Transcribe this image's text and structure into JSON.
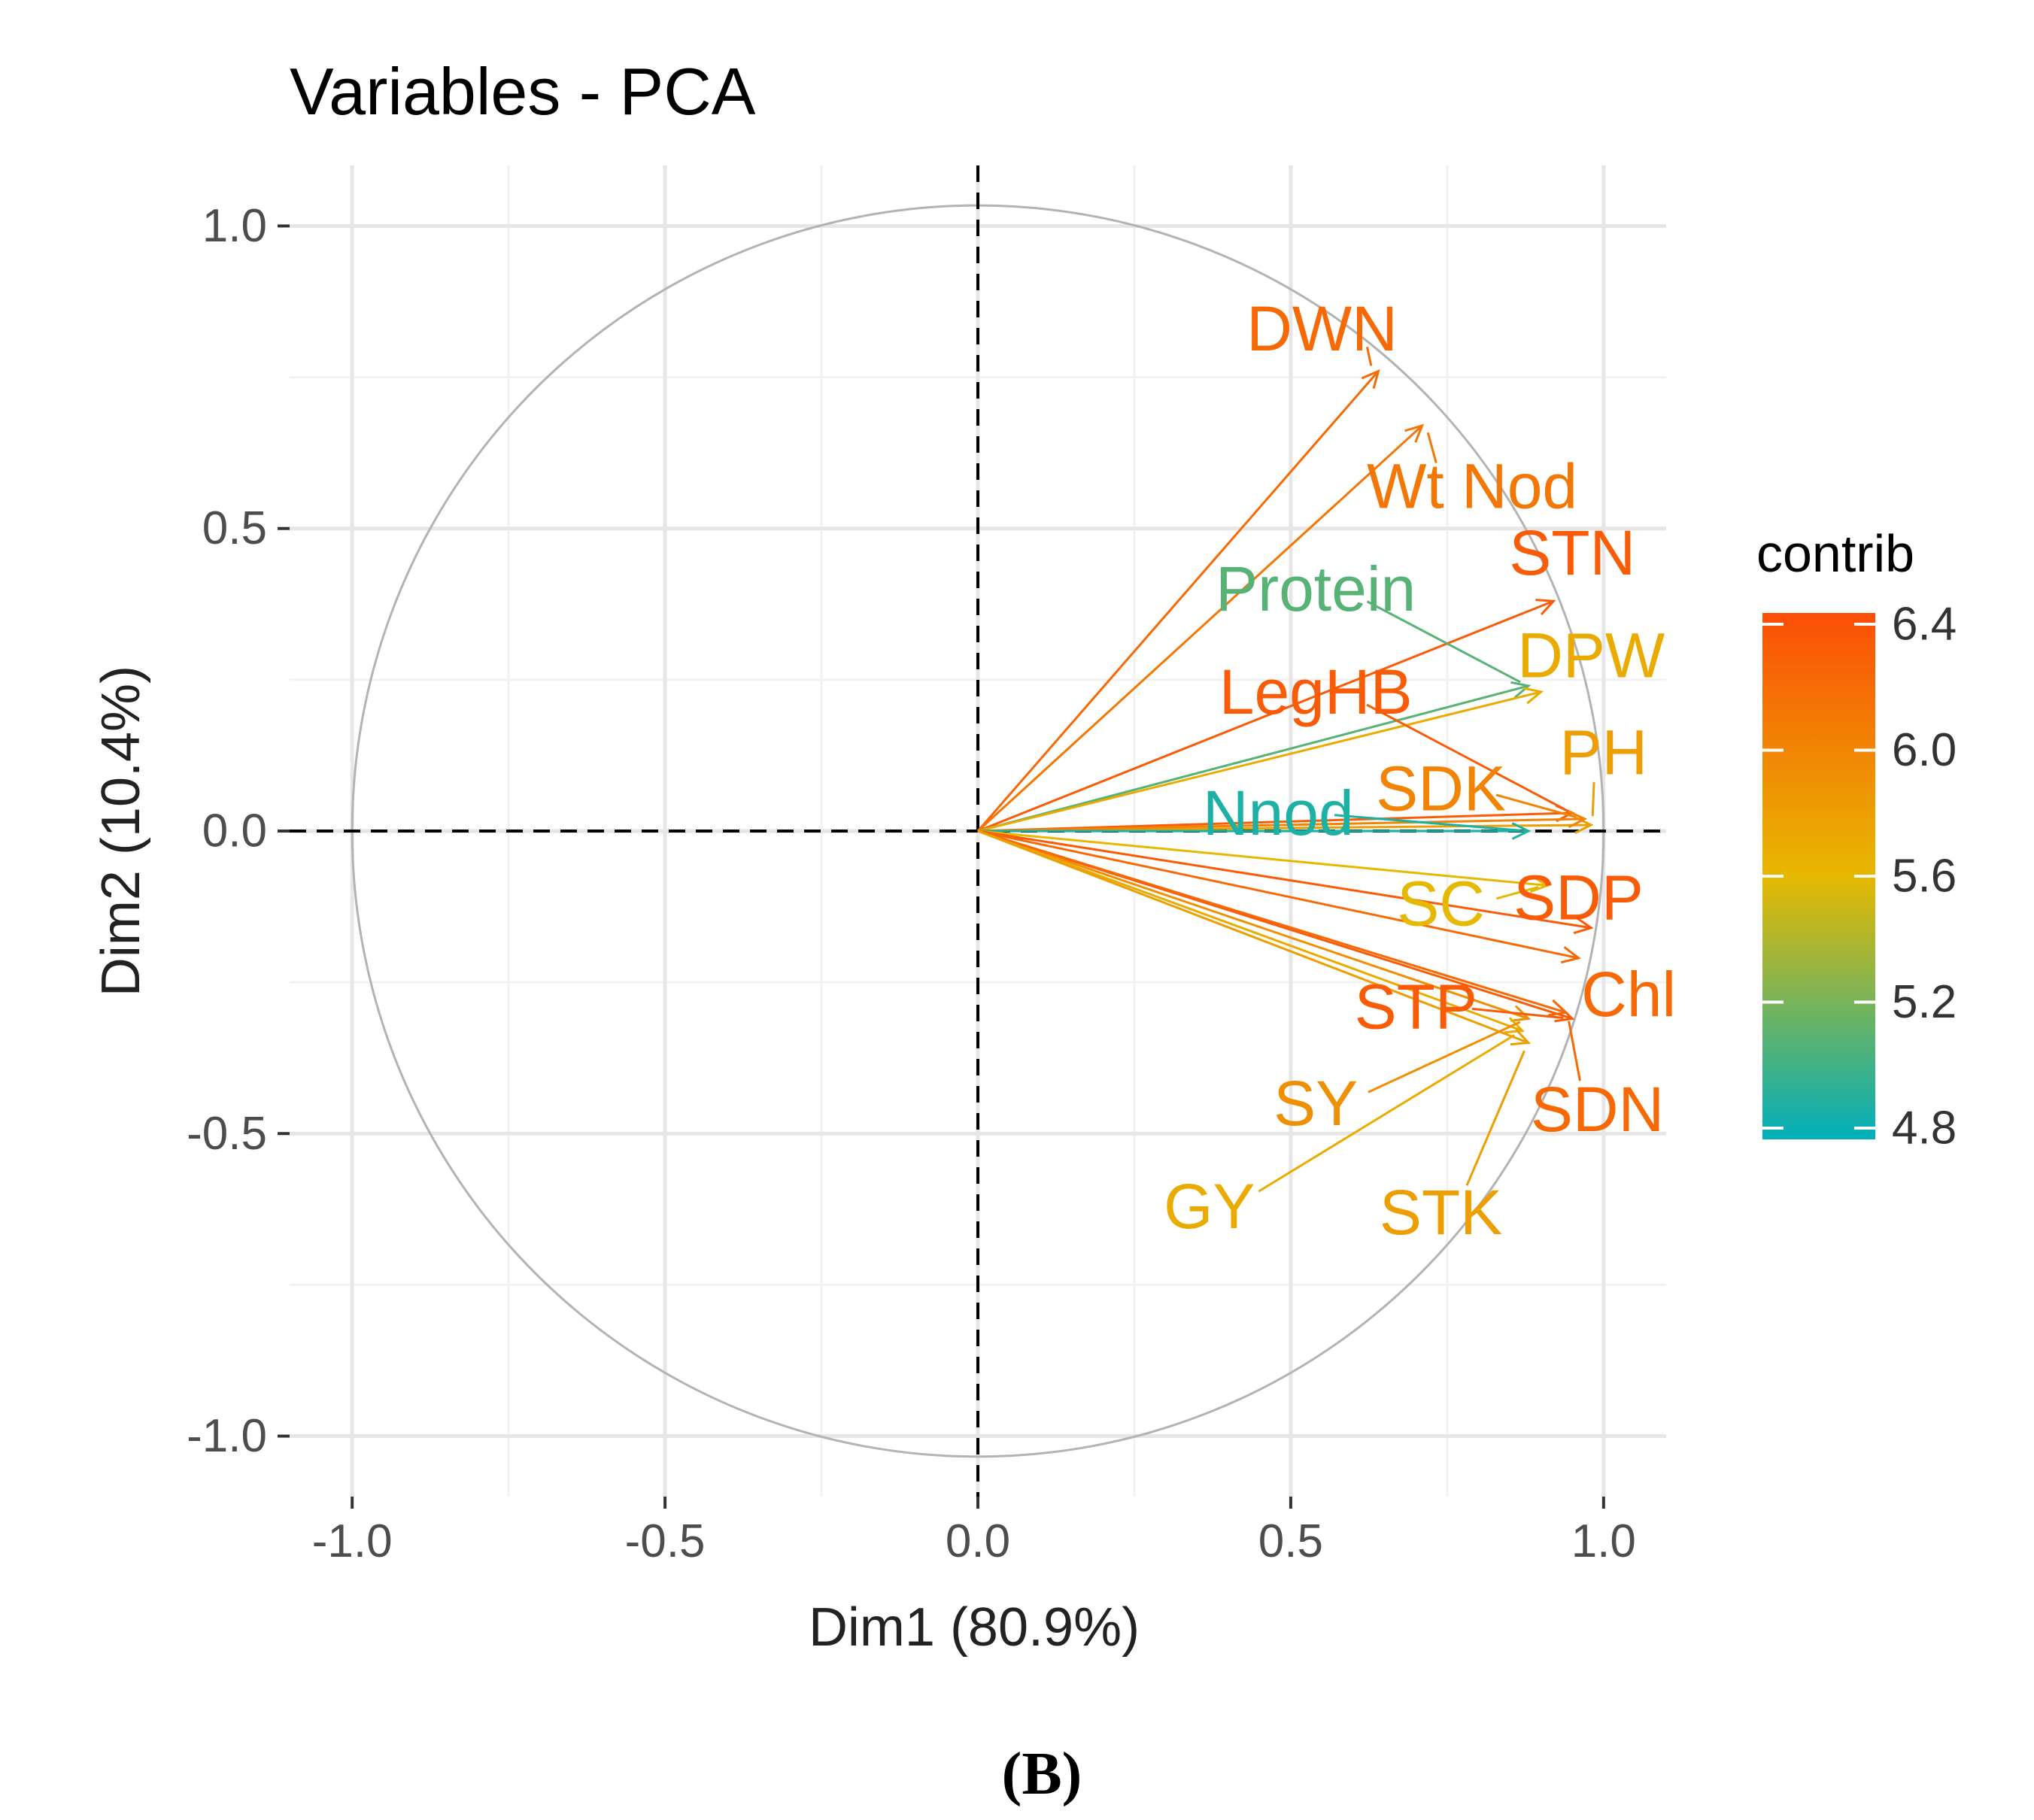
{
  "chart_data": {
    "type": "scatter",
    "subtype": "pca-variable-correlation-circle",
    "title": "Variables - PCA",
    "xlabel": "Dim1 (80.9%)",
    "ylabel": "Dim2 (10.4%)",
    "xlim": [
      -1.1,
      1.1
    ],
    "ylim": [
      -1.1,
      1.1
    ],
    "x_ticks": [
      -1.0,
      -0.5,
      0.0,
      0.5,
      1.0
    ],
    "y_ticks": [
      -1.0,
      -0.5,
      0.0,
      0.5,
      1.0
    ],
    "x_tick_labels": [
      "-1.0",
      "-0.5",
      "0.0",
      "0.5",
      "1.0"
    ],
    "y_tick_labels": [
      "-1.0",
      "-0.5",
      "0.0",
      "0.5",
      "1.0"
    ],
    "grid": true,
    "unit_circle": true,
    "legend": {
      "title": "contrib",
      "position": "right",
      "min": 4.8,
      "max": 6.4,
      "ticks": [
        4.8,
        5.2,
        5.6,
        6.0,
        6.4
      ],
      "tick_labels": [
        "4.8",
        "5.2",
        "5.6",
        "6.0",
        "6.4"
      ],
      "colors": [
        "#00AFBB",
        "#E7B800",
        "#FC4E07"
      ]
    },
    "panel_label": "(B)",
    "variables": [
      {
        "name": "DWN",
        "x": 0.64,
        "y": 0.76,
        "label_x": 0.55,
        "label_y": 0.83,
        "contrib": 6.2
      },
      {
        "name": "Wt Nod",
        "x": 0.71,
        "y": 0.67,
        "label_x": 0.79,
        "label_y": 0.57,
        "contrib": 6.1
      },
      {
        "name": "STN",
        "x": 0.92,
        "y": 0.38,
        "label_x": 0.95,
        "label_y": 0.46,
        "contrib": 6.3
      },
      {
        "name": "Protein",
        "x": 0.88,
        "y": 0.24,
        "label_x": 0.54,
        "label_y": 0.4,
        "contrib": 5.1
      },
      {
        "name": "DPW",
        "x": 0.9,
        "y": 0.23,
        "label_x": 0.98,
        "label_y": 0.29,
        "contrib": 5.7
      },
      {
        "name": "LegHB",
        "x": 0.95,
        "y": 0.03,
        "label_x": 0.54,
        "label_y": 0.23,
        "contrib": 6.3
      },
      {
        "name": "PH",
        "x": 0.98,
        "y": 0.01,
        "label_x": 1.0,
        "label_y": 0.13,
        "contrib": 5.8
      },
      {
        "name": "SDK",
        "x": 0.97,
        "y": 0.02,
        "label_x": 0.74,
        "label_y": 0.07,
        "contrib": 6.0
      },
      {
        "name": "Nnod",
        "x": 0.88,
        "y": 0.0,
        "label_x": 0.48,
        "label_y": 0.03,
        "contrib": 4.9
      },
      {
        "name": "SC",
        "x": 0.91,
        "y": -0.09,
        "label_x": 0.74,
        "label_y": -0.12,
        "contrib": 5.6
      },
      {
        "name": "SDP",
        "x": 0.98,
        "y": -0.16,
        "label_x": 0.96,
        "label_y": -0.11,
        "contrib": 6.3
      },
      {
        "name": "Chl",
        "x": 0.96,
        "y": -0.21,
        "label_x": 1.04,
        "label_y": -0.27,
        "contrib": 6.2
      },
      {
        "name": "STP",
        "x": 0.95,
        "y": -0.31,
        "label_x": 0.7,
        "label_y": -0.29,
        "contrib": 6.3
      },
      {
        "name": "SY",
        "x": 0.88,
        "y": -0.31,
        "label_x": 0.54,
        "label_y": -0.45,
        "contrib": 5.9
      },
      {
        "name": "SDN",
        "x": 0.94,
        "y": -0.3,
        "label_x": 0.99,
        "label_y": -0.46,
        "contrib": 6.2
      },
      {
        "name": "GY",
        "x": 0.87,
        "y": -0.33,
        "label_x": 0.37,
        "label_y": -0.62,
        "contrib": 5.7
      },
      {
        "name": "STK",
        "x": 0.88,
        "y": -0.35,
        "label_x": 0.74,
        "label_y": -0.63,
        "contrib": 5.8
      }
    ]
  }
}
